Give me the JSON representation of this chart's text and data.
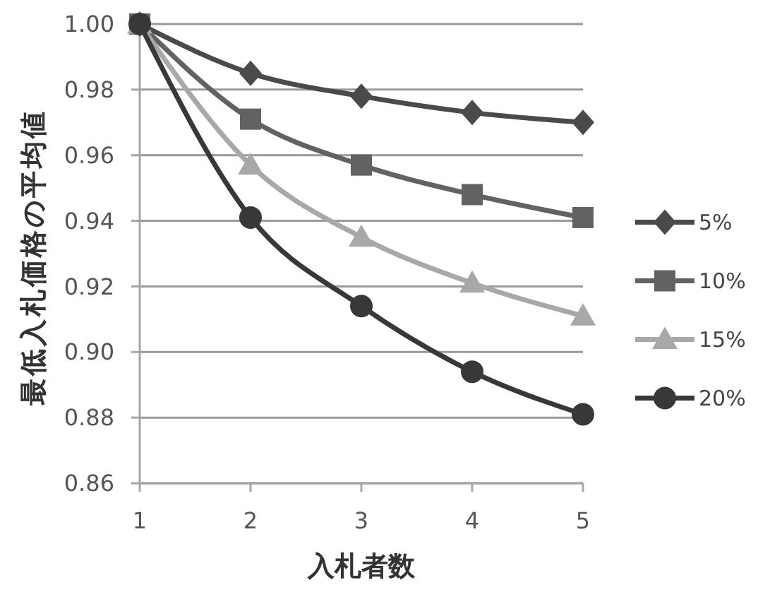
{
  "chart_data": {
    "type": "line",
    "xlabel": "入札者数",
    "ylabel": "最低入札価格の平均値",
    "x": [
      1,
      2,
      3,
      4,
      5
    ],
    "series": [
      {
        "name": "5%",
        "color": "#4a4a4a",
        "marker": "diamond",
        "values": [
          1.0,
          0.985,
          0.978,
          0.973,
          0.97
        ]
      },
      {
        "name": "10%",
        "color": "#626262",
        "marker": "square",
        "values": [
          1.0,
          0.971,
          0.957,
          0.948,
          0.941
        ]
      },
      {
        "name": "15%",
        "color": "#a8a8a8",
        "marker": "triangle",
        "values": [
          1.0,
          0.957,
          0.935,
          0.921,
          0.911
        ]
      },
      {
        "name": "20%",
        "color": "#383838",
        "marker": "circle",
        "values": [
          1.0,
          0.941,
          0.914,
          0.894,
          0.881
        ]
      }
    ],
    "xlim": [
      1,
      5
    ],
    "xticks": [
      1,
      2,
      3,
      4,
      5
    ],
    "ylim": [
      0.86,
      1.0
    ],
    "yticks": [
      {
        "value": 0.86,
        "label": "0.86"
      },
      {
        "value": 0.88,
        "label": "0.88"
      },
      {
        "value": 0.9,
        "label": "0.90"
      },
      {
        "value": 0.92,
        "label": "0.92"
      },
      {
        "value": 0.94,
        "label": "0.94"
      },
      {
        "value": 0.96,
        "label": "0.96"
      },
      {
        "value": 0.98,
        "label": "0.98"
      },
      {
        "value": 1.0,
        "label": "1.00"
      }
    ],
    "grid": "y",
    "legend": "right",
    "line_style": "solid"
  }
}
